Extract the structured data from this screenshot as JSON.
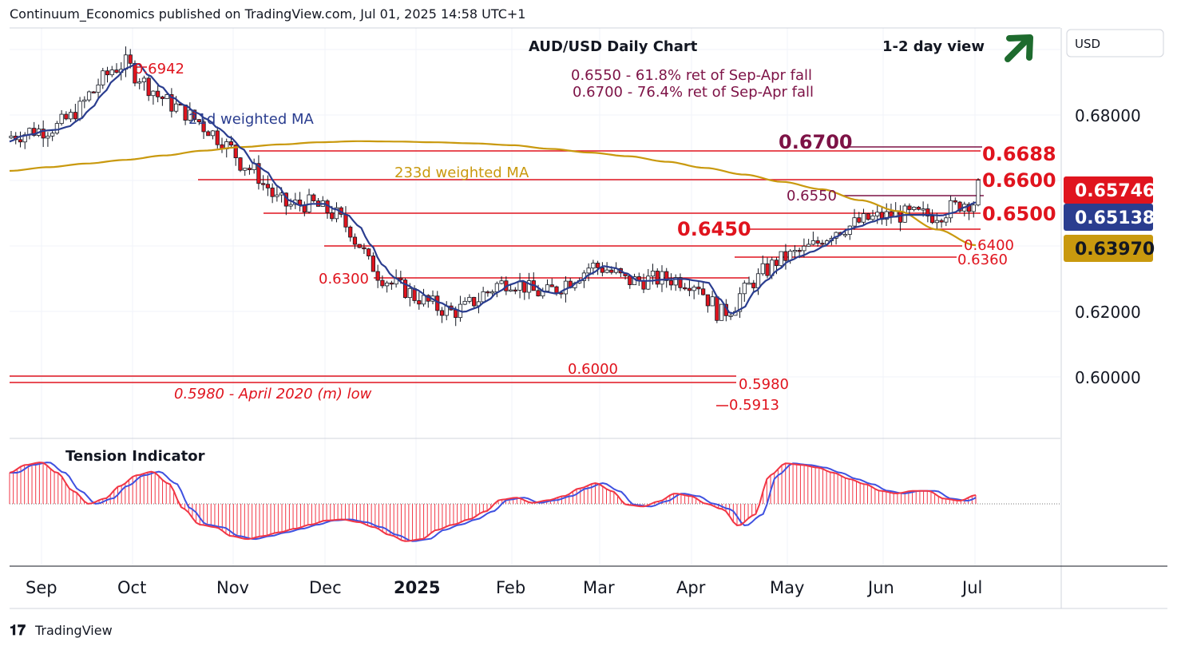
{
  "header": {
    "publisher_line": "Continuum_Economics published on TradingView.com, Jul 01, 2025 14:58 UTC+1",
    "chart_title": "AUD/USD Daily Chart",
    "view": "1-2 day view",
    "currency_button": "USD"
  },
  "footer": {
    "brand": "TradingView"
  },
  "colors": {
    "bull_candle": "#ffffff",
    "bear_candle": "#e0141e",
    "candle_outline": "#131722",
    "ma21": "#2a3d8f",
    "ma233": "#c9990e",
    "level_red": "#e0141e",
    "level_maroon": "#7d1246",
    "arrow": "#1e6b2e",
    "tension_red": "#f23645",
    "tension_blue": "#3f51e0"
  },
  "chart_data": {
    "type": "candlestick",
    "title": "AUD/USD Daily Chart",
    "ylim": [
      0.587,
      0.699
    ],
    "y_ticks": [
      "0.68000",
      "0.62000",
      "0.60000"
    ],
    "x_ticks": [
      "Sep",
      "Oct",
      "Nov",
      "Dec",
      "2025",
      "Feb",
      "Mar",
      "Apr",
      "May",
      "Jun",
      "Jul"
    ],
    "price_badges": [
      {
        "label": "0.65746",
        "value": 0.65746,
        "color": "#e0141e",
        "text_color": "#ffffff"
      },
      {
        "label": "0.65138",
        "value": 0.65138,
        "color": "#2a3d8f",
        "text_color": "#ffffff"
      },
      {
        "label": "0.63970",
        "value": 0.6397,
        "color": "#c9990e",
        "text_color": "#131722"
      }
    ],
    "series": [
      {
        "name": "21d weighted MA",
        "values": [
          0.668,
          0.6695,
          0.67,
          0.671,
          0.6712,
          0.672,
          0.674,
          0.677,
          0.681,
          0.685,
          0.688,
          0.6893,
          0.686,
          0.683,
          0.68,
          0.678,
          0.676,
          0.674,
          0.6715,
          0.669,
          0.666,
          0.662,
          0.66,
          0.656,
          0.652,
          0.6505,
          0.651,
          0.651,
          0.6495,
          0.648,
          0.645,
          0.64,
          0.6345,
          0.631,
          0.629,
          0.6275,
          0.6255,
          0.624,
          0.6225,
          0.6215,
          0.6225,
          0.6245,
          0.627,
          0.629,
          0.63,
          0.6288,
          0.627,
          0.6265,
          0.628,
          0.63,
          0.632,
          0.634,
          0.6335,
          0.632,
          0.63,
          0.63,
          0.6303,
          0.6305,
          0.6305,
          0.63,
          0.6295,
          0.625,
          0.621,
          0.6225,
          0.627,
          0.63,
          0.633,
          0.6355,
          0.6368,
          0.638,
          0.6395,
          0.642,
          0.644,
          0.6448,
          0.646,
          0.647,
          0.6475,
          0.648,
          0.648,
          0.648,
          0.6478,
          0.6485,
          0.65,
          0.6514
        ]
      },
      {
        "name": "233d weighted MA",
        "values": [
          0.66,
          0.661,
          0.662,
          0.663,
          0.6642,
          0.6655,
          0.6665,
          0.6672,
          0.6678,
          0.6681,
          0.668,
          0.6678,
          0.6675,
          0.667,
          0.666,
          0.665,
          0.664,
          0.6625,
          0.6608,
          0.659,
          0.657,
          0.655,
          0.652,
          0.649,
          0.644,
          0.6397
        ]
      },
      {
        "name": "Tension Indicator",
        "values": [
          0.6,
          0.75,
          0.8,
          0.6,
          0.25,
          0.0,
          0.1,
          0.35,
          0.55,
          0.62,
          0.4,
          -0.1,
          -0.4,
          -0.45,
          -0.62,
          -0.68,
          -0.62,
          -0.55,
          -0.48,
          -0.4,
          -0.32,
          -0.3,
          -0.35,
          -0.45,
          -0.6,
          -0.72,
          -0.68,
          -0.5,
          -0.4,
          -0.3,
          -0.15,
          0.08,
          0.12,
          0.02,
          0.07,
          0.15,
          0.3,
          0.4,
          0.25,
          -0.02,
          -0.05,
          0.05,
          0.2,
          0.15,
          0.0,
          -0.1,
          -0.42,
          -0.22,
          0.55,
          0.78,
          0.75,
          0.7,
          0.6,
          0.48,
          0.38,
          0.25,
          0.2,
          0.25,
          0.25,
          0.1,
          0.06,
          0.17
        ]
      }
    ],
    "levels_red": [
      {
        "label": "0.6942",
        "value": 0.6942
      },
      {
        "label": "0.6688",
        "value": 0.6688
      },
      {
        "label": "0.6600",
        "value": 0.66
      },
      {
        "label": "0.6500",
        "value": 0.65
      },
      {
        "label": "0.6450",
        "value": 0.645
      },
      {
        "label": "0.6400",
        "value": 0.64
      },
      {
        "label": "0.6360",
        "value": 0.636
      },
      {
        "label": "0.6300",
        "value": 0.63
      },
      {
        "label": "0.6000",
        "value": 0.6
      },
      {
        "label": "0.5980",
        "value": 0.598
      },
      {
        "label": "0.5913",
        "value": 0.5913
      }
    ],
    "levels_maroon": [
      {
        "label": "0.6700",
        "value": 0.67
      },
      {
        "label": "0.6550",
        "value": 0.655
      }
    ],
    "annotations": {
      "ret1": "0.6550 - 61.8% ret of Sep-Apr fall",
      "ret2": "0.6700 - 76.4% ret of Sep-Apr fall",
      "ma21_label": "21d weighted MA",
      "ma233_label": "233d weighted MA",
      "april_low": "0.5980 - April 2020 (m) low",
      "tension_label": "Tension Indicator"
    }
  }
}
